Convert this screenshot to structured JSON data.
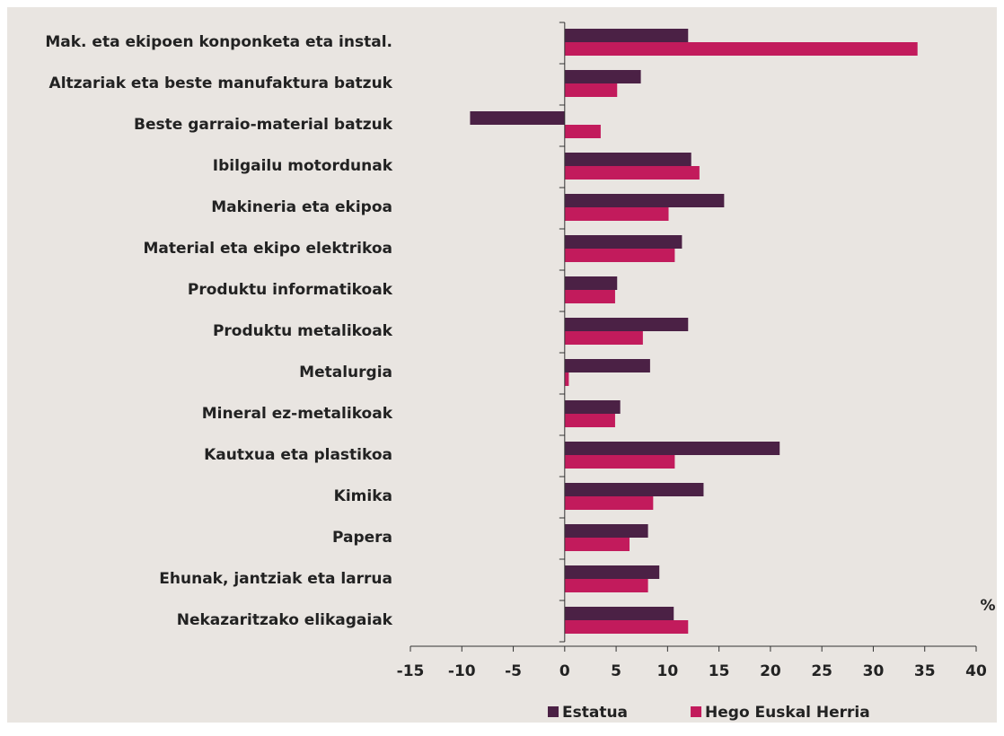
{
  "chart_data": {
    "type": "bar",
    "orientation": "horizontal",
    "categories": [
      "Mak. eta ekipoen konponketa eta instal.",
      "Altzariak eta beste manufaktura batzuk",
      "Beste garraio-material batzuk",
      "Ibilgailu motordunak",
      "Makineria eta ekipoa",
      "Material eta ekipo elektrikoa",
      "Produktu informatikoak",
      "Produktu metalikoak",
      "Metalurgia",
      "Mineral ez-metalikoak",
      "Kautxua eta plastikoa",
      "Kimika",
      "Papera",
      "Ehunak, jantziak eta larrua",
      "Nekazaritzako elikagaiak"
    ],
    "series": [
      {
        "name": "Estatua",
        "color": "#4b2145",
        "values": [
          12.0,
          7.4,
          -9.2,
          12.3,
          15.5,
          11.4,
          5.1,
          12.0,
          8.3,
          5.4,
          20.9,
          13.5,
          8.1,
          9.2,
          10.6
        ]
      },
      {
        "name": "Hego Euskal Herria",
        "color": "#c21b5c",
        "values": [
          34.3,
          5.1,
          3.5,
          13.1,
          10.1,
          10.7,
          4.9,
          7.6,
          0.4,
          4.9,
          10.7,
          8.6,
          6.3,
          8.1,
          12.0
        ]
      }
    ],
    "xlabel": "%",
    "xlim": [
      -15,
      40
    ],
    "xticks": [
      -15,
      -10,
      -5,
      0,
      5,
      10,
      15,
      20,
      25,
      30,
      35,
      40
    ],
    "grid": false,
    "legend": "bottom"
  }
}
